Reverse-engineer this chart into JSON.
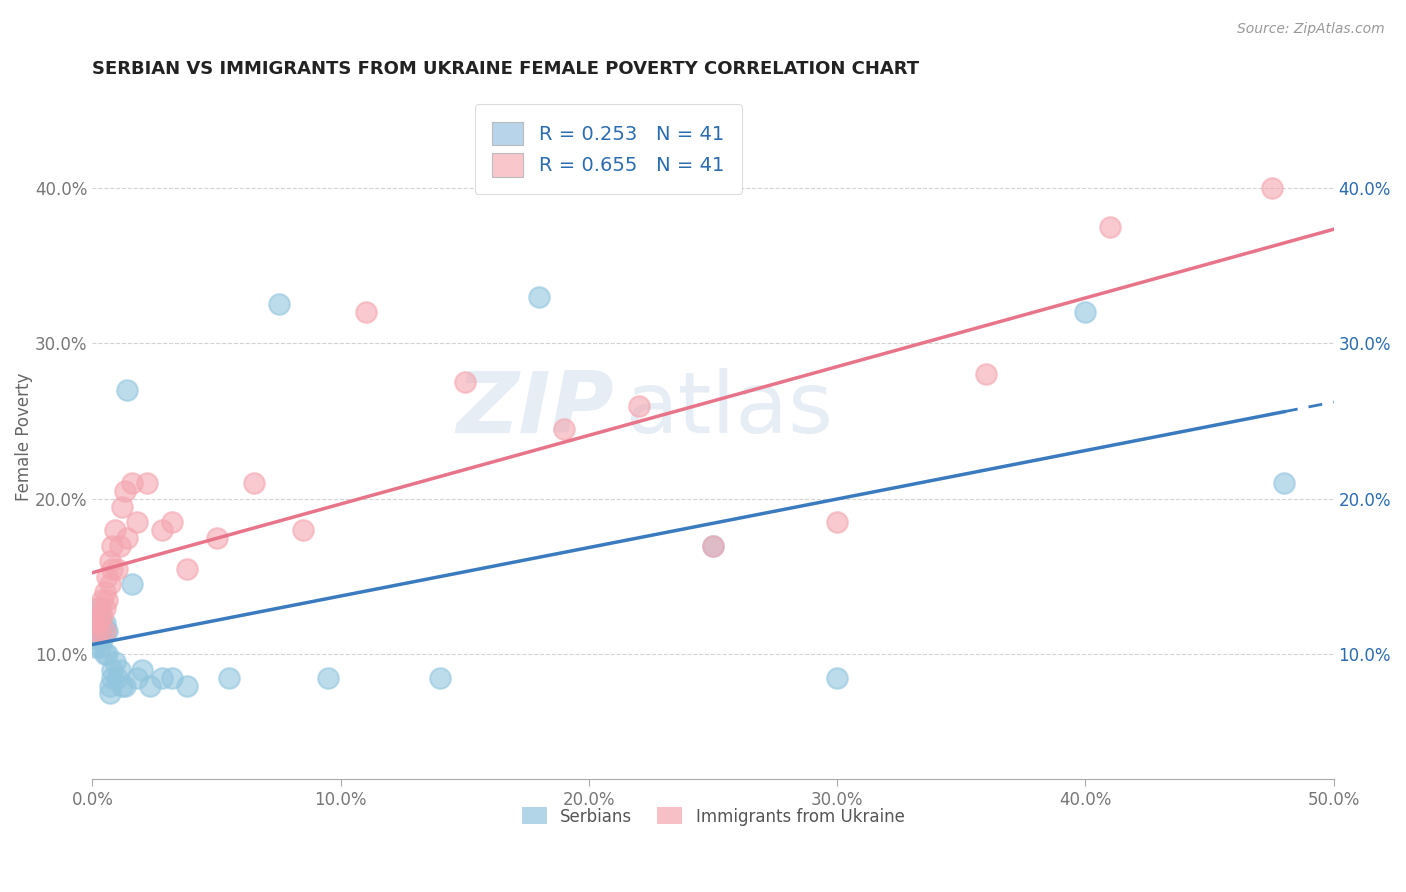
{
  "title": "SERBIAN VS IMMIGRANTS FROM UKRAINE FEMALE POVERTY CORRELATION CHART",
  "source": "Source: ZipAtlas.com",
  "ylabel": "Female Poverty",
  "xlim": [
    0.0,
    0.5
  ],
  "ylim": [
    0.02,
    0.46
  ],
  "xticks": [
    0.0,
    0.1,
    0.2,
    0.3,
    0.4,
    0.5
  ],
  "yticks": [
    0.1,
    0.2,
    0.3,
    0.4
  ],
  "ytick_labels": [
    "10.0%",
    "20.0%",
    "30.0%",
    "40.0%"
  ],
  "xtick_labels": [
    "0.0%",
    "10.0%",
    "20.0%",
    "30.0%",
    "40.0%",
    "50.0%"
  ],
  "R_serbian": 0.253,
  "R_ukraine": 0.655,
  "N": 41,
  "serbian_color": "#92c5de",
  "ukraine_color": "#f4a6b0",
  "serbian_line_color": "#3a7bbf",
  "ukraine_line_color": "#e8748a",
  "legend_patch_serbian": "#b8d4ea",
  "legend_patch_ukraine": "#f9c6cc",
  "legend_text_color": "#2b6cb0",
  "watermark_zip": "ZIP",
  "watermark_atlas": "atlas",
  "serbian_x": [
    0.001,
    0.001,
    0.002,
    0.002,
    0.002,
    0.003,
    0.003,
    0.003,
    0.004,
    0.004,
    0.005,
    0.005,
    0.005,
    0.006,
    0.006,
    0.007,
    0.007,
    0.008,
    0.008,
    0.009,
    0.01,
    0.011,
    0.012,
    0.013,
    0.014,
    0.016,
    0.018,
    0.02,
    0.023,
    0.028,
    0.032,
    0.038,
    0.055,
    0.075,
    0.095,
    0.14,
    0.18,
    0.25,
    0.3,
    0.4,
    0.48
  ],
  "serbian_y": [
    0.115,
    0.105,
    0.12,
    0.11,
    0.125,
    0.13,
    0.115,
    0.105,
    0.12,
    0.11,
    0.115,
    0.1,
    0.12,
    0.115,
    0.1,
    0.075,
    0.08,
    0.085,
    0.09,
    0.095,
    0.085,
    0.09,
    0.08,
    0.08,
    0.27,
    0.145,
    0.085,
    0.09,
    0.08,
    0.085,
    0.085,
    0.08,
    0.085,
    0.325,
    0.085,
    0.085,
    0.33,
    0.17,
    0.085,
    0.32,
    0.21
  ],
  "ukraine_x": [
    0.001,
    0.001,
    0.002,
    0.002,
    0.003,
    0.003,
    0.004,
    0.004,
    0.005,
    0.005,
    0.005,
    0.006,
    0.006,
    0.007,
    0.007,
    0.008,
    0.008,
    0.009,
    0.01,
    0.011,
    0.012,
    0.013,
    0.014,
    0.016,
    0.018,
    0.022,
    0.028,
    0.032,
    0.038,
    0.05,
    0.065,
    0.085,
    0.11,
    0.15,
    0.19,
    0.22,
    0.25,
    0.3,
    0.36,
    0.41,
    0.475
  ],
  "ukraine_y": [
    0.12,
    0.115,
    0.13,
    0.12,
    0.125,
    0.115,
    0.135,
    0.125,
    0.14,
    0.13,
    0.115,
    0.15,
    0.135,
    0.16,
    0.145,
    0.17,
    0.155,
    0.18,
    0.155,
    0.17,
    0.195,
    0.205,
    0.175,
    0.21,
    0.185,
    0.21,
    0.18,
    0.185,
    0.155,
    0.175,
    0.21,
    0.18,
    0.32,
    0.275,
    0.245,
    0.26,
    0.17,
    0.185,
    0.28,
    0.375,
    0.4
  ]
}
